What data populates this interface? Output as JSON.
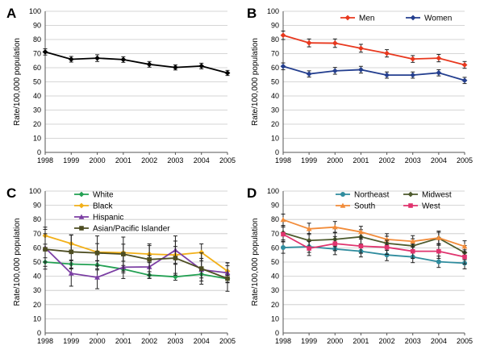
{
  "chart_data": [
    {
      "panel": "A",
      "type": "line",
      "ylabel": "Rate/100,000 population",
      "ylim": [
        0,
        100
      ],
      "yticks": [
        0,
        10,
        20,
        30,
        40,
        50,
        60,
        70,
        80,
        90,
        100
      ],
      "x": [
        "1998",
        "1999",
        "2000",
        "2001",
        "2002",
        "2003",
        "2004",
        "2005"
      ],
      "legend": "none",
      "series": [
        {
          "color": "#000000",
          "marker": "diamond",
          "values": [
            71.2,
            66.0,
            66.8,
            65.8,
            62.4,
            60.2,
            61.2,
            56.3
          ],
          "err": [
            2.2,
            2.0,
            2.4,
            2.0,
            2.0,
            1.8,
            2.0,
            1.8
          ]
        }
      ]
    },
    {
      "panel": "B",
      "type": "line",
      "ylabel": "Rate/100,000 population",
      "ylim": [
        0,
        100
      ],
      "yticks": [
        0,
        10,
        20,
        30,
        40,
        50,
        60,
        70,
        80,
        90,
        100
      ],
      "x": [
        "1998",
        "1999",
        "2000",
        "2001",
        "2002",
        "2003",
        "2004",
        "2005"
      ],
      "legend": "top-right",
      "series": [
        {
          "name": "Men",
          "color": "#e8381e",
          "marker": "diamond",
          "values": [
            83.0,
            77.6,
            77.4,
            73.8,
            70.2,
            66.2,
            66.8,
            62.0
          ],
          "err": [
            3.0,
            2.8,
            3.0,
            2.8,
            2.6,
            2.4,
            2.6,
            2.4
          ]
        },
        {
          "name": "Women",
          "color": "#243f8f",
          "marker": "diamond",
          "values": [
            61.0,
            55.6,
            57.8,
            58.6,
            54.8,
            54.8,
            56.4,
            51.0
          ],
          "err": [
            2.4,
            2.2,
            2.4,
            2.4,
            2.2,
            2.2,
            2.2,
            2.2
          ]
        }
      ]
    },
    {
      "panel": "C",
      "type": "line",
      "ylabel": "Rate/100,000 population",
      "ylim": [
        0,
        100
      ],
      "yticks": [
        0,
        10,
        20,
        30,
        40,
        50,
        60,
        70,
        80,
        90,
        100
      ],
      "x": [
        "1998",
        "1999",
        "2000",
        "2001",
        "2002",
        "2003",
        "2004",
        "2005"
      ],
      "legend": "top-left",
      "series": [
        {
          "name": "White",
          "color": "#23a053",
          "marker": "diamond",
          "values": [
            50.0,
            48.6,
            48.0,
            45.0,
            40.8,
            39.6,
            41.4,
            38.2
          ],
          "err": [
            3.0,
            2.8,
            2.8,
            2.6,
            2.4,
            2.4,
            2.6,
            2.4
          ]
        },
        {
          "name": "Black",
          "color": "#f2b019",
          "marker": "diamond",
          "values": [
            68.6,
            63.0,
            57.0,
            56.6,
            55.6,
            55.0,
            56.8,
            43.6
          ],
          "err": [
            6.0,
            6.0,
            6.0,
            6.0,
            6.0,
            6.0,
            6.0,
            6.0
          ]
        },
        {
          "name": "Hispanic",
          "color": "#7b3ea3",
          "marker": "triangle",
          "values": [
            60.0,
            42.0,
            39.2,
            46.4,
            46.6,
            58.4,
            44.6,
            42.4
          ],
          "err": [
            10.0,
            9.0,
            8.0,
            8.0,
            8.0,
            10.0,
            8.0,
            7.0
          ]
        },
        {
          "name": "Asian/Pacific Islander",
          "color": "#4d4d22",
          "marker": "square",
          "values": [
            59.0,
            57.2,
            56.4,
            55.6,
            51.8,
            52.8,
            45.4,
            38.4
          ],
          "err": [
            14.0,
            12.0,
            12.0,
            12.0,
            11.0,
            12.0,
            11.0,
            9.0
          ]
        }
      ]
    },
    {
      "panel": "D",
      "type": "line",
      "ylabel": "Rate/100,000 population",
      "ylim": [
        0,
        100
      ],
      "yticks": [
        0,
        10,
        20,
        30,
        40,
        50,
        60,
        70,
        80,
        90,
        100
      ],
      "x": [
        "1998",
        "1999",
        "2000",
        "2001",
        "2002",
        "2003",
        "2004",
        "2005"
      ],
      "legend": "top-right",
      "series": [
        {
          "name": "Northeast",
          "color": "#2f8c9e",
          "marker": "circle",
          "values": [
            60.2,
            60.8,
            59.2,
            57.6,
            55.0,
            53.6,
            50.2,
            49.2
          ],
          "err": [
            4.0,
            4.0,
            4.0,
            4.0,
            4.0,
            4.0,
            4.0,
            4.0
          ]
        },
        {
          "name": "Midwest",
          "color": "#4d5a2d",
          "marker": "diamond",
          "values": [
            70.6,
            65.2,
            66.0,
            67.8,
            63.2,
            61.4,
            66.8,
            56.6
          ],
          "err": [
            5.0,
            5.0,
            5.0,
            5.0,
            5.0,
            5.0,
            5.0,
            5.0
          ]
        },
        {
          "name": "South",
          "color": "#f28c3a",
          "marker": "triangle",
          "values": [
            79.8,
            73.4,
            74.6,
            71.2,
            66.0,
            64.6,
            67.0,
            61.0
          ],
          "err": [
            4.0,
            4.0,
            4.0,
            4.0,
            4.0,
            4.0,
            4.0,
            4.0
          ]
        },
        {
          "name": "West",
          "color": "#e0336e",
          "marker": "square",
          "values": [
            69.6,
            59.6,
            63.0,
            61.2,
            60.4,
            57.6,
            57.6,
            53.6
          ],
          "err": [
            5.0,
            5.0,
            5.0,
            5.0,
            5.0,
            5.0,
            5.0,
            5.0
          ]
        }
      ]
    }
  ]
}
